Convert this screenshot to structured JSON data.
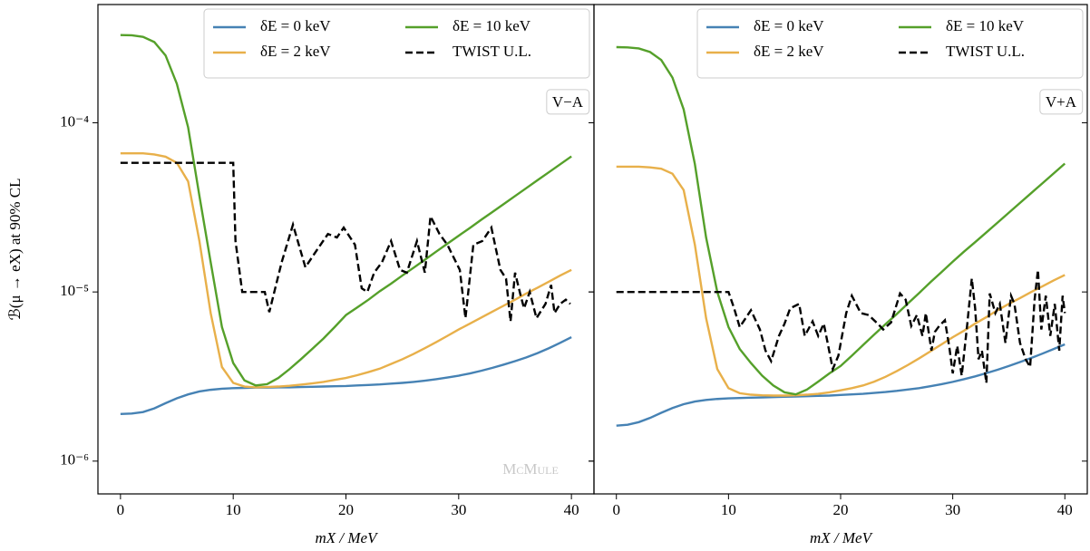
{
  "chart_data": [
    {
      "type": "line",
      "log_y": true,
      "legend": "upper right",
      "legend_columns": 2,
      "ylabel": "ℬ(μ → eX) at 90% CL",
      "xlabel": "mX / MeV",
      "annotation": "V−A",
      "watermark": "McMule",
      "xlim": [
        -2,
        42
      ],
      "xticks": [
        0,
        10,
        20,
        30,
        40
      ],
      "ylim": [
        6.4e-07,
        0.0005
      ],
      "yticks": [
        {
          "value": 1e-06,
          "label": "10⁻⁶"
        },
        {
          "value": 1e-05,
          "label": "10⁻⁵"
        },
        {
          "value": 0.0001,
          "label": "10⁻⁴"
        }
      ],
      "x": [
        0,
        1,
        2,
        3,
        4,
        5,
        6,
        7,
        8,
        9,
        10,
        11,
        12,
        13,
        14,
        15,
        16,
        17,
        18,
        19,
        20,
        21,
        22,
        23,
        24,
        25,
        26,
        27,
        28,
        29,
        30,
        31,
        32,
        33,
        34,
        35,
        36,
        37,
        38,
        39,
        40
      ],
      "series": [
        {
          "name": "δE = 0 keV",
          "color": "#4682b4",
          "linestyle": "solid",
          "values": [
            1.9e-06,
            1.91e-06,
            1.95e-06,
            2.05e-06,
            2.2e-06,
            2.35e-06,
            2.48e-06,
            2.58e-06,
            2.64e-06,
            2.68e-06,
            2.7e-06,
            2.71e-06,
            2.72e-06,
            2.72e-06,
            2.73e-06,
            2.73e-06,
            2.74e-06,
            2.75e-06,
            2.76e-06,
            2.77e-06,
            2.78e-06,
            2.8e-06,
            2.82e-06,
            2.84e-06,
            2.87e-06,
            2.9e-06,
            2.94e-06,
            2.99e-06,
            3.05e-06,
            3.12e-06,
            3.2e-06,
            3.3e-06,
            3.42e-06,
            3.56e-06,
            3.72e-06,
            3.9e-06,
            4.1e-06,
            4.35e-06,
            4.65e-06,
            5e-06,
            5.4e-06
          ]
        },
        {
          "name": "δE = 2 keV",
          "color": "#e8b04a",
          "linestyle": "solid",
          "values": [
            6.6e-05,
            6.6e-05,
            6.6e-05,
            6.5e-05,
            6.3e-05,
            5.8e-05,
            4.5e-05,
            2e-05,
            7.5e-06,
            3.6e-06,
            2.9e-06,
            2.76e-06,
            2.73e-06,
            2.74e-06,
            2.76e-06,
            2.79e-06,
            2.83e-06,
            2.88e-06,
            2.94e-06,
            3.02e-06,
            3.1e-06,
            3.22e-06,
            3.36e-06,
            3.52e-06,
            3.75e-06,
            4e-06,
            4.3e-06,
            4.65e-06,
            5.05e-06,
            5.5e-06,
            6e-06,
            6.5e-06,
            7.05e-06,
            7.65e-06,
            8.3e-06,
            9e-06,
            9.8e-06,
            1.06e-05,
            1.15e-05,
            1.25e-05,
            1.35e-05
          ]
        },
        {
          "name": "δE = 10 keV",
          "color": "#55a02a",
          "linestyle": "solid",
          "values": [
            0.00033,
            0.000329,
            0.000322,
            0.0003,
            0.00025,
            0.00017,
            9.4e-05,
            3.7e-05,
            1.5e-05,
            6.2e-06,
            3.8e-06,
            3e-06,
            2.8e-06,
            2.85e-06,
            3.1e-06,
            3.5e-06,
            4e-06,
            4.6e-06,
            5.3e-06,
            6.2e-06,
            7.3e-06,
            8.1e-06,
            9e-06,
            1.01e-05,
            1.12e-05,
            1.25e-05,
            1.39e-05,
            1.55e-05,
            1.73e-05,
            1.93e-05,
            2.15e-05,
            2.39e-05,
            2.67e-05,
            2.97e-05,
            3.31e-05,
            3.69e-05,
            4.11e-05,
            4.58e-05,
            5.1e-05,
            5.68e-05,
            6.33e-05
          ]
        },
        {
          "name": "TWIST U.L.",
          "color": "#000000",
          "linestyle": "dashed",
          "x": [
            0,
            10,
            10.2,
            10.8,
            12.2,
            12.8,
            13.2,
            14.3,
            15.3,
            16.4,
            17.5,
            18.4,
            19.2,
            19.8,
            20.8,
            21.4,
            21.9,
            22.5,
            23.2,
            24.0,
            24.8,
            25.4,
            26.3,
            27.0,
            27.5,
            28.3,
            29.0,
            30.1,
            30.6,
            31.3,
            32.1,
            32.9,
            33.7,
            34.2,
            34.6,
            35.0,
            35.5,
            35.8,
            36.3,
            36.9,
            37.7,
            38.2,
            38.5,
            39.0,
            39.5,
            39.9
          ],
          "values": [
            5.8e-05,
            5.8e-05,
            2e-05,
            1e-05,
            1e-05,
            1e-05,
            7.6e-06,
            1.5e-05,
            2.5e-05,
            1.4e-05,
            1.8e-05,
            2.2e-05,
            2.1e-05,
            2.4e-05,
            1.9e-05,
            1.05e-05,
            1e-05,
            1.3e-05,
            1.5e-05,
            2e-05,
            1.35e-05,
            1.3e-05,
            2e-05,
            1.3e-05,
            2.8e-05,
            2.2e-05,
            1.9e-05,
            1.35e-05,
            7e-06,
            1.9e-05,
            2e-05,
            2.4e-05,
            1.35e-05,
            1.2e-05,
            6.7e-06,
            1.3e-05,
            9.5e-06,
            8e-06,
            1e-05,
            7e-06,
            8.5e-06,
            1.1e-05,
            7.5e-06,
            8.5e-06,
            9e-06,
            8.5e-06
          ]
        }
      ]
    },
    {
      "type": "line",
      "log_y": true,
      "legend": "upper right",
      "legend_columns": 2,
      "xlabel": "mX / MeV",
      "annotation": "V+A",
      "ytick_labels": false,
      "xlim": [
        -2,
        42
      ],
      "xticks": [
        0,
        10,
        20,
        30,
        40
      ],
      "ylim": [
        6.4e-07,
        0.0005
      ],
      "yticks": [
        1e-06,
        1e-05,
        0.0001
      ],
      "x": [
        0,
        1,
        2,
        3,
        4,
        5,
        6,
        7,
        8,
        9,
        10,
        11,
        12,
        13,
        14,
        15,
        16,
        17,
        18,
        19,
        20,
        21,
        22,
        23,
        24,
        25,
        26,
        27,
        28,
        29,
        30,
        31,
        32,
        33,
        34,
        35,
        36,
        37,
        38,
        39,
        40
      ],
      "series": [
        {
          "name": "δE = 0 keV",
          "color": "#4682b4",
          "linestyle": "solid",
          "values": [
            1.62e-06,
            1.64e-06,
            1.7e-06,
            1.8e-06,
            1.93e-06,
            2.06e-06,
            2.17e-06,
            2.25e-06,
            2.3e-06,
            2.33e-06,
            2.35e-06,
            2.36e-06,
            2.37e-06,
            2.38e-06,
            2.39e-06,
            2.4e-06,
            2.41e-06,
            2.42e-06,
            2.43e-06,
            2.44e-06,
            2.46e-06,
            2.48e-06,
            2.5e-06,
            2.53e-06,
            2.56e-06,
            2.6e-06,
            2.65e-06,
            2.7e-06,
            2.77e-06,
            2.85e-06,
            2.94e-06,
            3.05e-06,
            3.17e-06,
            3.31e-06,
            3.47e-06,
            3.65e-06,
            3.85e-06,
            4.07e-06,
            4.32e-06,
            4.6e-06,
            4.9e-06
          ]
        },
        {
          "name": "δE = 2 keV",
          "color": "#e8b04a",
          "linestyle": "solid",
          "values": [
            5.5e-05,
            5.5e-05,
            5.5e-05,
            5.45e-05,
            5.35e-05,
            5e-05,
            4e-05,
            1.9e-05,
            7e-06,
            3.5e-06,
            2.7e-06,
            2.52e-06,
            2.47e-06,
            2.45e-06,
            2.44e-06,
            2.44e-06,
            2.45e-06,
            2.47e-06,
            2.5e-06,
            2.55e-06,
            2.62e-06,
            2.7e-06,
            2.8e-06,
            2.95e-06,
            3.15e-06,
            3.4e-06,
            3.7e-06,
            4.05e-06,
            4.45e-06,
            4.9e-06,
            5.4e-06,
            5.9e-06,
            6.5e-06,
            7.1e-06,
            7.8e-06,
            8.5e-06,
            9.2e-06,
            1e-05,
            1.08e-05,
            1.17e-05,
            1.26e-05
          ]
        },
        {
          "name": "δE = 10 keV",
          "color": "#55a02a",
          "linestyle": "solid",
          "values": [
            0.00028,
            0.000279,
            0.000275,
            0.000262,
            0.000235,
            0.000185,
            0.00012,
            5.7e-05,
            2.1e-05,
            1e-05,
            6.2e-06,
            4.6e-06,
            3.8e-06,
            3.2e-06,
            2.8e-06,
            2.55e-06,
            2.48e-06,
            2.65e-06,
            2.95e-06,
            3.3e-06,
            3.65e-06,
            4.2e-06,
            4.85e-06,
            5.6e-06,
            6.45e-06,
            7.4e-06,
            8.55e-06,
            9.85e-06,
            1.14e-05,
            1.31e-05,
            1.51e-05,
            1.73e-05,
            1.97e-05,
            2.25e-05,
            2.57e-05,
            2.94e-05,
            3.36e-05,
            3.84e-05,
            4.39e-05,
            5.02e-05,
            5.74e-05
          ]
        },
        {
          "name": "TWIST U.L.",
          "color": "#000000",
          "linestyle": "dashed",
          "x": [
            0,
            10,
            10.5,
            11,
            12,
            12.8,
            13.3,
            13.8,
            14.5,
            15,
            15.5,
            16.3,
            16.8,
            17.5,
            18,
            18.5,
            19.3,
            19.8,
            20.5,
            21,
            21.8,
            22.5,
            23.3,
            23.8,
            24.5,
            25.3,
            25.8,
            26.3,
            26.8,
            27.3,
            27.6,
            28.1,
            28.4,
            28.8,
            29.3,
            29.7,
            30.0,
            30.4,
            30.8,
            31.3,
            31.7,
            32.0,
            32.3,
            32.6,
            33.0,
            33.3,
            33.8,
            34.2,
            34.7,
            35.2,
            35.5,
            36.0,
            36.5,
            36.9,
            37.3,
            37.6,
            37.9,
            38.3,
            38.7,
            39.1,
            39.5,
            39.8,
            40.0
          ],
          "values": [
            1e-05,
            1e-05,
            8e-06,
            6.2e-06,
            7.8e-06,
            6e-06,
            4.5e-06,
            3.9e-06,
            5.5e-06,
            6.5e-06,
            8e-06,
            8.5e-06,
            5.5e-06,
            6.7e-06,
            5.5e-06,
            6.5e-06,
            3.5e-06,
            4.2e-06,
            7.5e-06,
            9.5e-06,
            7.5e-06,
            7.3e-06,
            6.5e-06,
            6e-06,
            6.6e-06,
            9.8e-06,
            9e-06,
            6.3e-06,
            7.3e-06,
            5.5e-06,
            7.5e-06,
            4.5e-06,
            5.8e-06,
            6.3e-06,
            6.8e-06,
            4.7e-06,
            3.3e-06,
            4.8e-06,
            3.2e-06,
            6.5e-06,
            1.2e-05,
            8e-06,
            4e-06,
            4.5e-06,
            2.9e-06,
            9.8e-06,
            7.5e-06,
            8.5e-06,
            5e-06,
            9.5e-06,
            8.5e-06,
            5e-06,
            4e-06,
            3.6e-06,
            9e-06,
            1.35e-05,
            6e-06,
            9.5e-06,
            5.5e-06,
            8.5e-06,
            4.5e-06,
            9.5e-06,
            7.5e-06
          ]
        }
      ]
    }
  ]
}
